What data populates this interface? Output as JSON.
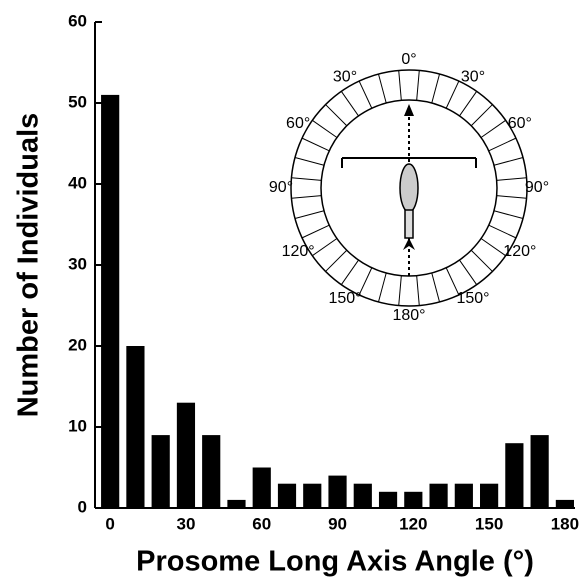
{
  "chart_data": {
    "type": "bar",
    "x_label": "Prosome Long Axis Angle (°)",
    "y_label": "Number of Individuals",
    "x": [
      0,
      10,
      20,
      30,
      40,
      50,
      60,
      70,
      80,
      90,
      100,
      110,
      120,
      130,
      140,
      150,
      160,
      170,
      180
    ],
    "values": [
      51,
      20,
      9,
      13,
      9,
      1,
      5,
      3,
      3,
      4,
      3,
      2,
      2,
      3,
      3,
      3,
      8,
      9,
      1
    ],
    "color": "#000000",
    "xlim": [
      -6,
      184
    ],
    "xticks": [
      0,
      30,
      60,
      90,
      120,
      150,
      180
    ],
    "ylim": [
      0,
      60
    ],
    "yticks": [
      0,
      10,
      20,
      30,
      40,
      50,
      60
    ],
    "inset_labels": [
      "0°",
      "30°",
      "60°",
      "90°",
      "120°",
      "150°",
      "180°",
      "150°",
      "120°",
      "90°",
      "60°",
      "30°"
    ]
  }
}
